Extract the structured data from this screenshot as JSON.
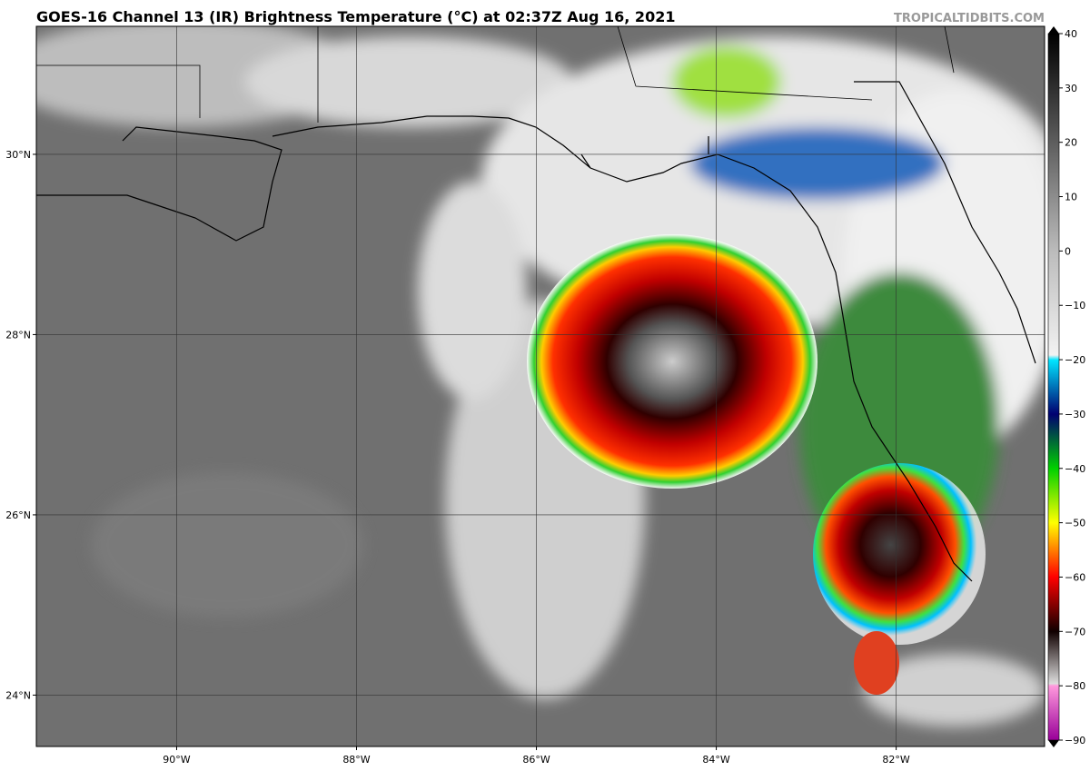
{
  "header": {
    "title": "GOES-16 Channel 13 (IR) Brightness Temperature (°C) at 02:37Z Aug 16, 2021",
    "source": "TROPICALTIDBITS.COM"
  },
  "map": {
    "lon_range": [
      -91.56,
      -80.35
    ],
    "lat_range": [
      23.43,
      31.42
    ],
    "lon_labels": [
      {
        "value": -90,
        "label": "90°W"
      },
      {
        "value": -88,
        "label": "88°W"
      },
      {
        "value": -86,
        "label": "86°W"
      },
      {
        "value": -84,
        "label": "84°W"
      },
      {
        "value": -82,
        "label": "82°W"
      }
    ],
    "lat_labels": [
      {
        "value": 30,
        "label": "30°N"
      },
      {
        "value": 28,
        "label": "28°N"
      },
      {
        "value": 26,
        "label": "26°N"
      },
      {
        "value": 24,
        "label": "24°N"
      }
    ]
  },
  "colorbar": {
    "range": [
      -90,
      40
    ],
    "ticks": [
      {
        "value": 40,
        "label": "40"
      },
      {
        "value": 30,
        "label": "30"
      },
      {
        "value": 20,
        "label": "20"
      },
      {
        "value": 10,
        "label": "10"
      },
      {
        "value": 0,
        "label": "0"
      },
      {
        "value": -10,
        "label": "−10"
      },
      {
        "value": -20,
        "label": "−20"
      },
      {
        "value": -30,
        "label": "−30"
      },
      {
        "value": -40,
        "label": "−40"
      },
      {
        "value": -50,
        "label": "−50"
      },
      {
        "value": -60,
        "label": "−60"
      },
      {
        "value": -70,
        "label": "−70"
      },
      {
        "value": -80,
        "label": "−80"
      },
      {
        "value": -90,
        "label": "−90"
      }
    ]
  }
}
